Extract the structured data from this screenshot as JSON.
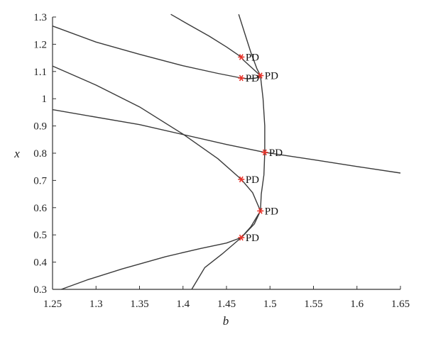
{
  "chart_data": {
    "type": "line",
    "title": "",
    "xlabel": "b",
    "ylabel": "x",
    "xlim": [
      1.25,
      1.65
    ],
    "ylim": [
      0.3,
      1.3
    ],
    "xticks": [
      "1.25",
      "1.3",
      "1.35",
      "1.4",
      "1.45",
      "1.5",
      "1.55",
      "1.6",
      "1.65"
    ],
    "yticks": [
      "0.3",
      "0.4",
      "0.5",
      "0.6",
      "0.7",
      "0.8",
      "0.9",
      "1",
      "1.1",
      "1.2",
      "1.3"
    ],
    "grid": false,
    "line_color": "#3a3a3a",
    "marker_color": "#e8332a",
    "series": [
      {
        "points": [
          [
            1.25,
            0.96
          ],
          [
            1.35,
            0.905
          ],
          [
            1.45,
            0.832
          ],
          [
            1.494,
            0.803
          ],
          [
            1.55,
            0.776
          ],
          [
            1.6,
            0.751
          ],
          [
            1.65,
            0.727
          ]
        ]
      },
      {
        "points": [
          [
            1.25,
            1.267
          ],
          [
            1.3,
            1.208
          ],
          [
            1.35,
            1.163
          ],
          [
            1.4,
            1.121
          ],
          [
            1.44,
            1.093
          ],
          [
            1.467,
            1.076
          ],
          [
            1.475,
            1.073
          ],
          [
            1.484,
            1.076
          ],
          [
            1.489,
            1.085
          ]
        ]
      },
      {
        "points": [
          [
            1.489,
            1.085
          ],
          [
            1.47,
            1.14
          ],
          [
            1.467,
            1.153
          ],
          [
            1.45,
            1.19
          ],
          [
            1.43,
            1.23
          ],
          [
            1.405,
            1.275
          ],
          [
            1.386,
            1.31
          ]
        ]
      },
      {
        "points": [
          [
            1.464,
            1.31
          ],
          [
            1.471,
            1.24
          ],
          [
            1.478,
            1.17
          ],
          [
            1.485,
            1.11
          ],
          [
            1.489,
            1.085
          ],
          [
            1.492,
            1.0
          ],
          [
            1.494,
            0.9
          ],
          [
            1.494,
            0.803
          ],
          [
            1.493,
            0.72
          ],
          [
            1.49,
            0.65
          ],
          [
            1.489,
            0.588
          ],
          [
            1.482,
            0.54
          ],
          [
            1.467,
            0.49
          ],
          [
            1.445,
            0.43
          ],
          [
            1.425,
            0.38
          ],
          [
            1.41,
            0.3
          ]
        ]
      },
      {
        "points": [
          [
            1.25,
            1.12
          ],
          [
            1.3,
            1.05
          ],
          [
            1.35,
            0.97
          ],
          [
            1.4,
            0.87
          ],
          [
            1.44,
            0.78
          ],
          [
            1.467,
            0.704
          ],
          [
            1.48,
            0.655
          ],
          [
            1.489,
            0.588
          ],
          [
            1.478,
            0.53
          ],
          [
            1.467,
            0.49
          ],
          [
            1.45,
            0.47
          ],
          [
            1.42,
            0.45
          ],
          [
            1.38,
            0.42
          ],
          [
            1.33,
            0.375
          ],
          [
            1.29,
            0.335
          ],
          [
            1.26,
            0.3
          ]
        ]
      }
    ],
    "markers": [
      {
        "label": "PD",
        "b": 1.467,
        "x": 1.153
      },
      {
        "label": "PD",
        "b": 1.489,
        "x": 1.085
      },
      {
        "label": "PD",
        "b": 1.467,
        "x": 1.076
      },
      {
        "label": "PD",
        "b": 1.494,
        "x": 0.803
      },
      {
        "label": "PD",
        "b": 1.467,
        "x": 0.704
      },
      {
        "label": "PD",
        "b": 1.489,
        "x": 0.588
      },
      {
        "label": "PD",
        "b": 1.467,
        "x": 0.49
      }
    ]
  }
}
